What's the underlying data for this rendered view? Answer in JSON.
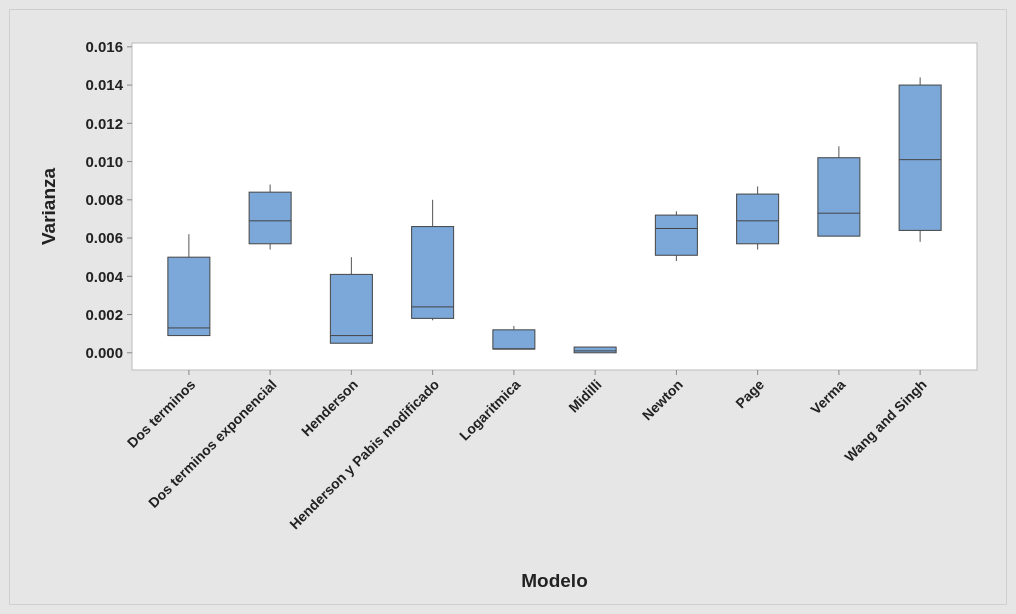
{
  "chart_data": {
    "type": "box",
    "xlabel": "Modelo",
    "ylabel": "Varianza",
    "categories": [
      "Dos terminos",
      "Dos terminos exponencial",
      "Henderson",
      "Henderson y Pabis modificado",
      "Logaritmica",
      "Midilli",
      "Newton",
      "Page",
      "Verma",
      "Wang and Singh"
    ],
    "color": "#7ba7d9",
    "boxes": [
      {
        "low": 0.0009,
        "q1": 0.0009,
        "median": 0.0013,
        "q3": 0.005,
        "high": 0.0062
      },
      {
        "low": 0.0054,
        "q1": 0.0057,
        "median": 0.0069,
        "q3": 0.0084,
        "high": 0.0088
      },
      {
        "low": 0.0005,
        "q1": 0.0005,
        "median": 0.0009,
        "q3": 0.0041,
        "high": 0.005
      },
      {
        "low": 0.0017,
        "q1": 0.0018,
        "median": 0.0024,
        "q3": 0.0066,
        "high": 0.008
      },
      {
        "low": 0.0002,
        "q1": 0.0002,
        "median": 0.0002,
        "q3": 0.0012,
        "high": 0.0014
      },
      {
        "low": 0.0,
        "q1": 0.0,
        "median": 0.0001,
        "q3": 0.0003,
        "high": 0.0003
      },
      {
        "low": 0.0048,
        "q1": 0.0051,
        "median": 0.0065,
        "q3": 0.0072,
        "high": 0.0074
      },
      {
        "low": 0.0054,
        "q1": 0.0057,
        "median": 0.0069,
        "q3": 0.0083,
        "high": 0.0087
      },
      {
        "low": 0.0061,
        "q1": 0.0061,
        "median": 0.0073,
        "q3": 0.0102,
        "high": 0.0108
      },
      {
        "low": 0.0058,
        "q1": 0.0064,
        "median": 0.0101,
        "q3": 0.014,
        "high": 0.0144
      }
    ],
    "ylim": [
      -0.0009,
      0.0162
    ],
    "yticks": [
      {
        "value": 0,
        "label": "0.000"
      },
      {
        "value": 0.002,
        "label": "0.002"
      },
      {
        "value": 0.004,
        "label": "0.004"
      },
      {
        "value": 0.006,
        "label": "0.006"
      },
      {
        "value": 0.008,
        "label": "0.008"
      },
      {
        "value": 0.01,
        "label": "0.010"
      },
      {
        "value": 0.012,
        "label": "0.012"
      },
      {
        "value": 0.014,
        "label": "0.014"
      },
      {
        "value": 0.016,
        "label": "0.016"
      }
    ],
    "grid": false
  }
}
